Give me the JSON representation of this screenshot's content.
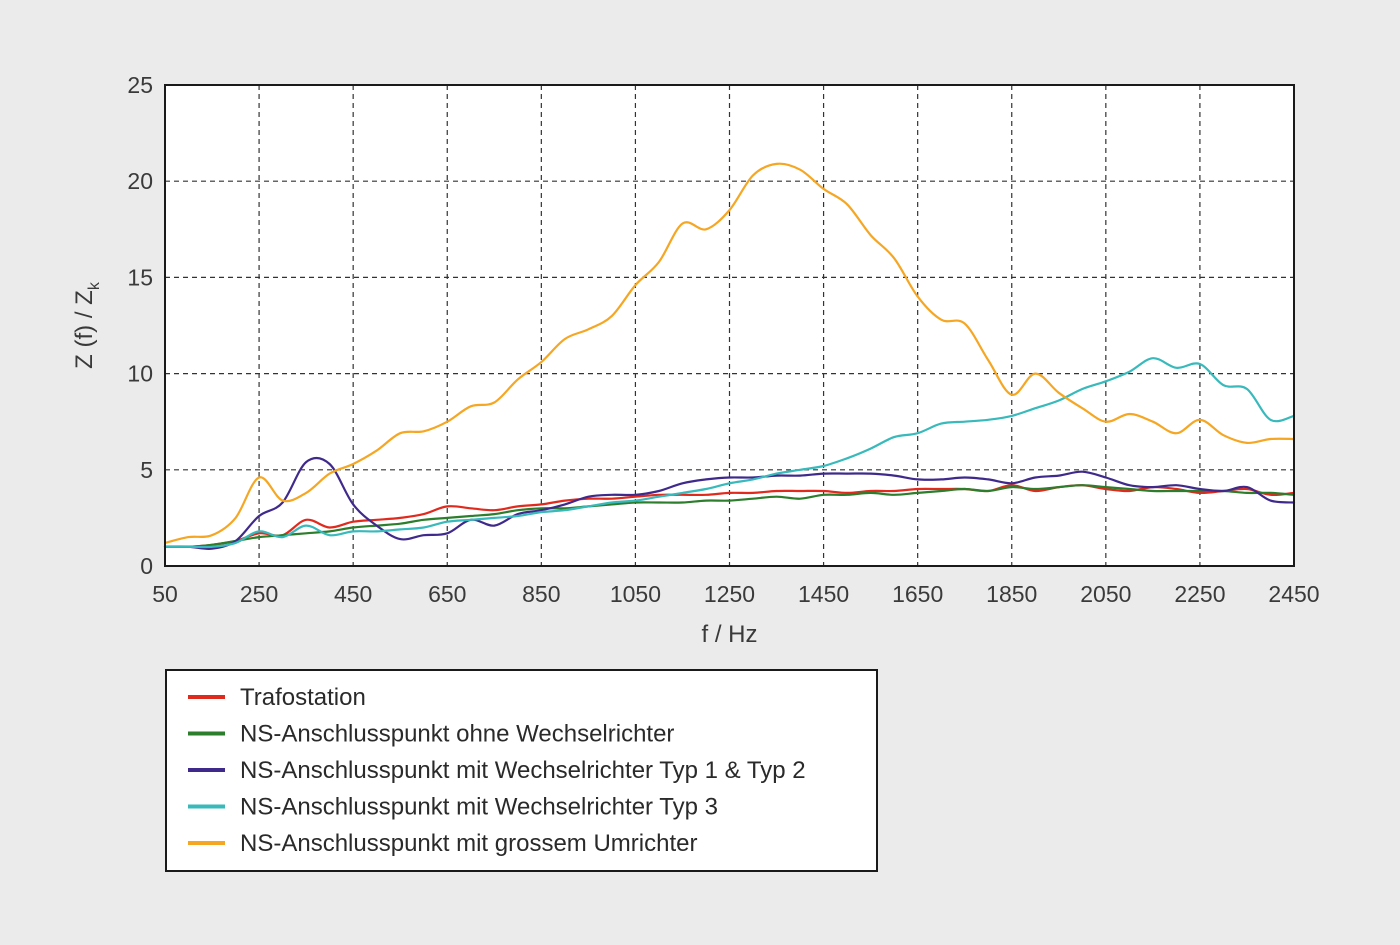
{
  "chart_data": {
    "type": "line",
    "xlabel": "f / Hz",
    "ylabel": "Z (f) / Z",
    "ylabel_subscript": "k",
    "xlim": [
      50,
      2450
    ],
    "ylim": [
      0,
      25
    ],
    "xticks": [
      "50",
      "250",
      "450",
      "650",
      "850",
      "1050",
      "1250",
      "1450",
      "1650",
      "1850",
      "2050",
      "2250",
      "2450"
    ],
    "yticks": [
      "0",
      "5",
      "10",
      "15",
      "20",
      "25"
    ],
    "grid": true,
    "legend_position": "bottom-left",
    "series": [
      {
        "name": "Trafostation",
        "color": "#e02a1e",
        "x": [
          50,
          100,
          150,
          200,
          250,
          300,
          350,
          400,
          450,
          500,
          550,
          600,
          650,
          700,
          750,
          800,
          850,
          900,
          950,
          1000,
          1050,
          1100,
          1150,
          1200,
          1250,
          1300,
          1350,
          1400,
          1450,
          1500,
          1550,
          1600,
          1650,
          1700,
          1750,
          1800,
          1850,
          1900,
          1950,
          2000,
          2050,
          2100,
          2150,
          2200,
          2250,
          2300,
          2350,
          2400,
          2450
        ],
        "y": [
          1.0,
          1.0,
          1.1,
          1.3,
          1.7,
          1.6,
          2.4,
          2.0,
          2.3,
          2.4,
          2.5,
          2.7,
          3.1,
          3.0,
          2.9,
          3.1,
          3.2,
          3.4,
          3.5,
          3.5,
          3.6,
          3.7,
          3.7,
          3.7,
          3.8,
          3.8,
          3.9,
          3.9,
          3.9,
          3.8,
          3.9,
          3.9,
          4.0,
          4.0,
          4.0,
          3.9,
          4.2,
          3.9,
          4.1,
          4.2,
          4.0,
          3.9,
          4.1,
          4.0,
          3.8,
          3.9,
          4.0,
          3.7,
          3.8
        ]
      },
      {
        "name": "NS-Anschlusspunkt ohne Wechselrichter",
        "color": "#2c7d2c",
        "x": [
          50,
          100,
          150,
          200,
          250,
          300,
          350,
          400,
          450,
          500,
          550,
          600,
          650,
          700,
          750,
          800,
          850,
          900,
          950,
          1000,
          1050,
          1100,
          1150,
          1200,
          1250,
          1300,
          1350,
          1400,
          1450,
          1500,
          1550,
          1600,
          1650,
          1700,
          1750,
          1800,
          1850,
          1900,
          1950,
          2000,
          2050,
          2100,
          2150,
          2200,
          2250,
          2300,
          2350,
          2400,
          2450
        ],
        "y": [
          1.0,
          1.0,
          1.1,
          1.3,
          1.5,
          1.6,
          1.7,
          1.8,
          2.0,
          2.1,
          2.2,
          2.4,
          2.5,
          2.6,
          2.7,
          2.9,
          3.0,
          3.0,
          3.1,
          3.2,
          3.3,
          3.3,
          3.3,
          3.4,
          3.4,
          3.5,
          3.6,
          3.5,
          3.7,
          3.7,
          3.8,
          3.7,
          3.8,
          3.9,
          4.0,
          3.9,
          4.1,
          4.0,
          4.1,
          4.2,
          4.1,
          4.0,
          3.9,
          3.9,
          3.9,
          3.9,
          3.8,
          3.8,
          3.7
        ]
      },
      {
        "name": "NS-Anschlusspunkt mit Wechselrichter Typ 1 & Typ 2",
        "color": "#3f2a8c",
        "x": [
          50,
          100,
          150,
          200,
          250,
          300,
          350,
          400,
          450,
          500,
          550,
          600,
          650,
          700,
          750,
          800,
          850,
          900,
          950,
          1000,
          1050,
          1100,
          1150,
          1200,
          1250,
          1300,
          1350,
          1400,
          1450,
          1500,
          1550,
          1600,
          1650,
          1700,
          1750,
          1800,
          1850,
          1900,
          1950,
          2000,
          2050,
          2100,
          2150,
          2200,
          2250,
          2300,
          2350,
          2400,
          2450
        ],
        "y": [
          1.0,
          1.0,
          0.9,
          1.3,
          2.6,
          3.3,
          5.4,
          5.3,
          3.2,
          2.1,
          1.4,
          1.6,
          1.7,
          2.4,
          2.1,
          2.7,
          2.9,
          3.2,
          3.6,
          3.7,
          3.7,
          3.9,
          4.3,
          4.5,
          4.6,
          4.6,
          4.7,
          4.7,
          4.8,
          4.8,
          4.8,
          4.7,
          4.5,
          4.5,
          4.6,
          4.5,
          4.3,
          4.6,
          4.7,
          4.9,
          4.6,
          4.2,
          4.1,
          4.2,
          4.0,
          3.9,
          4.1,
          3.4,
          3.3
        ]
      },
      {
        "name": "NS-Anschlusspunkt mit Wechselrichter Typ 3",
        "color": "#38b9bb",
        "x": [
          50,
          100,
          150,
          200,
          250,
          300,
          350,
          400,
          450,
          500,
          550,
          600,
          650,
          700,
          750,
          800,
          850,
          900,
          950,
          1000,
          1050,
          1100,
          1150,
          1200,
          1250,
          1300,
          1350,
          1400,
          1450,
          1500,
          1550,
          1600,
          1650,
          1700,
          1750,
          1800,
          1850,
          1900,
          1950,
          2000,
          2050,
          2100,
          2150,
          2200,
          2250,
          2300,
          2350,
          2400,
          2450
        ],
        "y": [
          1.0,
          1.0,
          1.0,
          1.2,
          1.8,
          1.5,
          2.1,
          1.6,
          1.8,
          1.8,
          1.9,
          2.0,
          2.3,
          2.4,
          2.5,
          2.6,
          2.8,
          2.9,
          3.1,
          3.3,
          3.4,
          3.6,
          3.8,
          4.0,
          4.3,
          4.5,
          4.8,
          5.0,
          5.2,
          5.6,
          6.1,
          6.7,
          6.9,
          7.4,
          7.5,
          7.6,
          7.8,
          8.2,
          8.6,
          9.2,
          9.6,
          10.1,
          10.8,
          10.3,
          10.5,
          9.4,
          9.2,
          7.6,
          7.8
        ]
      },
      {
        "name": "NS-Anschlusspunkt mit grossem Umrichter",
        "color": "#f5a623",
        "x": [
          50,
          100,
          150,
          200,
          250,
          300,
          350,
          400,
          450,
          500,
          550,
          600,
          650,
          700,
          750,
          800,
          850,
          900,
          950,
          1000,
          1050,
          1100,
          1150,
          1200,
          1250,
          1300,
          1350,
          1400,
          1450,
          1500,
          1550,
          1600,
          1650,
          1700,
          1750,
          1800,
          1850,
          1900,
          1950,
          2000,
          2050,
          2100,
          2150,
          2200,
          2250,
          2300,
          2350,
          2400,
          2450
        ],
        "y": [
          1.2,
          1.5,
          1.6,
          2.5,
          4.6,
          3.4,
          3.8,
          4.8,
          5.3,
          6.0,
          6.9,
          7.0,
          7.5,
          8.3,
          8.5,
          9.7,
          10.6,
          11.8,
          12.3,
          13.0,
          14.6,
          15.8,
          17.8,
          17.5,
          18.5,
          20.3,
          20.9,
          20.6,
          19.6,
          18.8,
          17.2,
          16.0,
          14.0,
          12.8,
          12.6,
          10.7,
          8.9,
          10.0,
          9.0,
          8.2,
          7.5,
          7.9,
          7.5,
          6.9,
          7.6,
          6.8,
          6.4,
          6.6,
          6.6
        ]
      }
    ]
  }
}
